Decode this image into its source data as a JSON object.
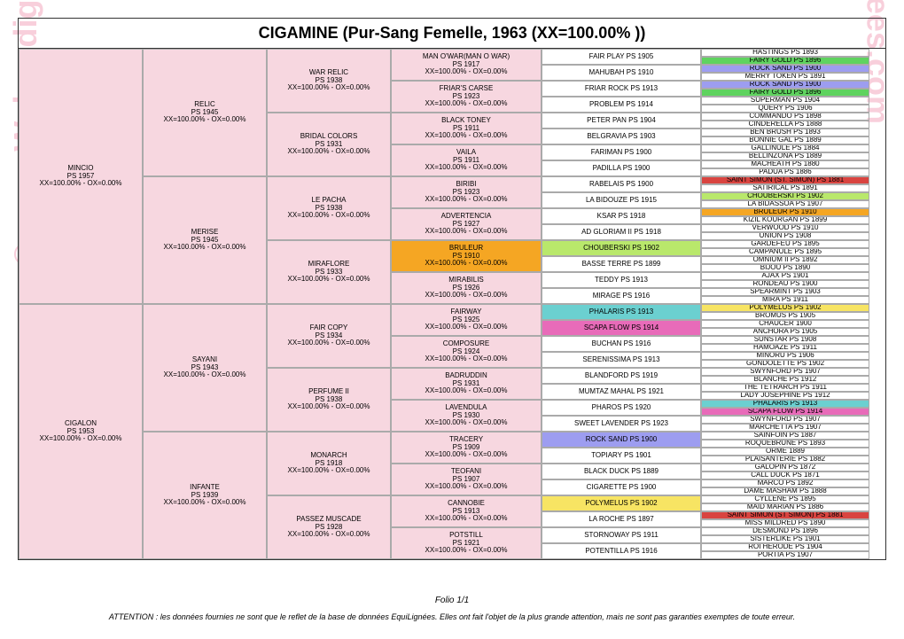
{
  "title": "CIGAMINE (Pur-Sang Femelle,  1963 (XX=100.00% ))",
  "folio": "Folio 1/1",
  "attention": "ATTENTION : les données fournies ne sont que le reflet de la base de données EquiLignées. Elles ont fait l'objet de la plus grande attention, mais ne sont pas garanties exemptes de toute erreur.",
  "watermark": "© www.Webpedigrees.com",
  "xx_line": "XX=100.00% - OX=0.00%",
  "colors": {
    "pink": "#f7d7e0",
    "green": "#5fd35f",
    "orange": "#f5a623",
    "yellow": "#f7e463",
    "red": "#d94440",
    "lime": "#b9e86b",
    "teal": "#6bd0d0",
    "purple": "#9d9df0",
    "magenta": "#e86bb9"
  },
  "gen1": [
    {
      "name": "MINCIO",
      "sub": "PS 1957",
      "bg": "pink"
    },
    {
      "name": "CIGALON",
      "sub": "PS 1953",
      "bg": "pink"
    }
  ],
  "gen2": [
    {
      "name": "RELIC",
      "sub": "PS 1945",
      "bg": "pink"
    },
    {
      "name": "MERISE",
      "sub": "PS 1945",
      "bg": "pink"
    },
    {
      "name": "SAYANI",
      "sub": "PS 1943",
      "bg": "pink"
    },
    {
      "name": "INFANTE",
      "sub": "PS 1939",
      "bg": "pink"
    }
  ],
  "gen3": [
    {
      "name": "WAR RELIC",
      "sub": "PS 1938",
      "bg": "pink"
    },
    {
      "name": "BRIDAL COLORS",
      "sub": "PS 1931",
      "bg": "pink"
    },
    {
      "name": "LE PACHA",
      "sub": "PS 1938",
      "bg": "pink"
    },
    {
      "name": "MIRAFLORE",
      "sub": "PS 1933",
      "bg": "pink"
    },
    {
      "name": "FAIR COPY",
      "sub": "PS 1934",
      "bg": "pink"
    },
    {
      "name": "PERFUME II",
      "sub": "PS 1938",
      "bg": "pink"
    },
    {
      "name": "MONARCH",
      "sub": "PS 1918",
      "bg": "pink"
    },
    {
      "name": "PASSEZ MUSCADE",
      "sub": "PS 1928",
      "bg": "pink"
    }
  ],
  "gen4": [
    {
      "name": "MAN O'WAR(MAN O WAR)",
      "sub": "PS 1917",
      "bg": "pink"
    },
    {
      "name": "FRIAR'S CARSE",
      "sub": "PS 1923",
      "bg": "pink"
    },
    {
      "name": "BLACK TONEY",
      "sub": "PS 1911",
      "bg": "pink"
    },
    {
      "name": "VAILA",
      "sub": "PS 1911",
      "bg": "pink"
    },
    {
      "name": "BIRIBI",
      "sub": "PS 1923",
      "bg": "pink"
    },
    {
      "name": "ADVERTENCIA",
      "sub": "PS 1927",
      "bg": "pink"
    },
    {
      "name": "BRULEUR",
      "sub": "PS 1910",
      "bg": "orange"
    },
    {
      "name": "MIRABILIS",
      "sub": "PS 1926",
      "bg": "pink"
    },
    {
      "name": "FAIRWAY",
      "sub": "PS 1925",
      "bg": "pink"
    },
    {
      "name": "COMPOSURE",
      "sub": "PS 1924",
      "bg": "pink"
    },
    {
      "name": "BADRUDDIN",
      "sub": "PS 1931",
      "bg": "pink"
    },
    {
      "name": "LAVENDULA",
      "sub": "PS 1930",
      "bg": "pink"
    },
    {
      "name": "TRACERY",
      "sub": "PS 1909",
      "bg": "pink"
    },
    {
      "name": "TEOFANI",
      "sub": "PS 1907",
      "bg": "pink"
    },
    {
      "name": "CANNOBIE",
      "sub": "PS 1913",
      "bg": "pink"
    },
    {
      "name": "POTSTILL",
      "sub": "PS 1921",
      "bg": "pink"
    }
  ],
  "gen5": [
    {
      "name": "FAIR PLAY PS 1905",
      "bg": ""
    },
    {
      "name": "MAHUBAH PS 1910",
      "bg": ""
    },
    {
      "name": "FRIAR ROCK PS 1913",
      "bg": ""
    },
    {
      "name": "PROBLEM PS 1914",
      "bg": ""
    },
    {
      "name": "PETER PAN PS 1904",
      "bg": ""
    },
    {
      "name": "BELGRAVIA PS 1903",
      "bg": ""
    },
    {
      "name": "FARIMAN PS 1900",
      "bg": ""
    },
    {
      "name": "PADILLA PS 1900",
      "bg": ""
    },
    {
      "name": "RABELAIS PS 1900",
      "bg": ""
    },
    {
      "name": "LA BIDOUZE PS 1915",
      "bg": ""
    },
    {
      "name": "KSAR PS 1918",
      "bg": ""
    },
    {
      "name": "AD GLORIAM II PS 1918",
      "bg": ""
    },
    {
      "name": "CHOUBERSKI PS 1902",
      "bg": "lime"
    },
    {
      "name": "BASSE TERRE PS 1899",
      "bg": ""
    },
    {
      "name": "TEDDY PS 1913",
      "bg": ""
    },
    {
      "name": "MIRAGE PS 1916",
      "bg": ""
    },
    {
      "name": "PHALARIS PS 1913",
      "bg": "teal"
    },
    {
      "name": "SCAPA FLOW PS 1914",
      "bg": "magenta"
    },
    {
      "name": "BUCHAN PS 1916",
      "bg": ""
    },
    {
      "name": "SERENISSIMA PS 1913",
      "bg": ""
    },
    {
      "name": "BLANDFORD PS 1919",
      "bg": ""
    },
    {
      "name": "MUMTAZ MAHAL PS 1921",
      "bg": ""
    },
    {
      "name": "PHAROS PS 1920",
      "bg": ""
    },
    {
      "name": "SWEET LAVENDER PS 1923",
      "bg": ""
    },
    {
      "name": "ROCK SAND PS 1900",
      "bg": "purple"
    },
    {
      "name": "TOPIARY PS 1901",
      "bg": ""
    },
    {
      "name": "BLACK DUCK PS 1889",
      "bg": ""
    },
    {
      "name": "CIGARETTE PS 1900",
      "bg": ""
    },
    {
      "name": "POLYMELUS PS 1902",
      "bg": "yellow"
    },
    {
      "name": "LA ROCHE PS 1897",
      "bg": ""
    },
    {
      "name": "STORNOWAY PS 1911",
      "bg": ""
    },
    {
      "name": "POTENTILLA PS 1916",
      "bg": ""
    }
  ],
  "gen6": [
    {
      "name": "HASTINGS PS 1893",
      "bg": ""
    },
    {
      "name": "FAIRY GOLD PS 1896",
      "bg": "green"
    },
    {
      "name": "ROCK SAND PS 1900",
      "bg": "purple"
    },
    {
      "name": "MERRY TOKEN PS 1891",
      "bg": ""
    },
    {
      "name": "ROCK SAND PS 1900",
      "bg": "purple"
    },
    {
      "name": "FAIRY GOLD PS 1896",
      "bg": "green"
    },
    {
      "name": "SUPERMAN PS 1904",
      "bg": ""
    },
    {
      "name": "QUERY PS 1906",
      "bg": ""
    },
    {
      "name": "COMMANDO PS 1898",
      "bg": ""
    },
    {
      "name": "CINDERELLA PS 1888",
      "bg": ""
    },
    {
      "name": "BEN BRUSH PS 1893",
      "bg": ""
    },
    {
      "name": "BONNIE GAL PS 1889",
      "bg": ""
    },
    {
      "name": "GALLINULE PS 1884",
      "bg": ""
    },
    {
      "name": "BELLINZONA PS 1889",
      "bg": ""
    },
    {
      "name": "MACHEATH PS 1880",
      "bg": ""
    },
    {
      "name": "PADUA PS 1886",
      "bg": ""
    },
    {
      "name": "SAINT SIMON (ST. SIMON) PS 1881",
      "bg": "red"
    },
    {
      "name": "SATIRICAL PS 1891",
      "bg": ""
    },
    {
      "name": "CHOUBERSKI PS 1902",
      "bg": "lime"
    },
    {
      "name": "LA BIDASSOA PS 1907",
      "bg": ""
    },
    {
      "name": "BRULEUR PS 1910",
      "bg": "orange"
    },
    {
      "name": "KIZIL KOURGAN PS 1899",
      "bg": ""
    },
    {
      "name": "VERWOOD PS 1910",
      "bg": ""
    },
    {
      "name": "UNION PS 1908",
      "bg": ""
    },
    {
      "name": "GARDEFEU PS 1895",
      "bg": ""
    },
    {
      "name": "CAMPANULE PS 1895",
      "bg": ""
    },
    {
      "name": "OMNIUM II PS 1892",
      "bg": ""
    },
    {
      "name": "BIJOU PS 1890",
      "bg": ""
    },
    {
      "name": "AJAX PS 1901",
      "bg": ""
    },
    {
      "name": "RONDEAU PS 1900",
      "bg": ""
    },
    {
      "name": "SPEARMINT PS 1903",
      "bg": ""
    },
    {
      "name": "MIRA PS 1911",
      "bg": ""
    },
    {
      "name": "POLYMELUS PS 1902",
      "bg": "yellow"
    },
    {
      "name": "BROMUS PS 1905",
      "bg": ""
    },
    {
      "name": "CHAUCER 1900",
      "bg": ""
    },
    {
      "name": "ANCHORA PS 1905",
      "bg": ""
    },
    {
      "name": "SUNSTAR PS 1908",
      "bg": ""
    },
    {
      "name": "HAMOAZE PS 1911",
      "bg": ""
    },
    {
      "name": "MINORU PS 1906",
      "bg": ""
    },
    {
      "name": "GONDOLETTE PS 1902",
      "bg": ""
    },
    {
      "name": "SWYNFORD PS 1907",
      "bg": ""
    },
    {
      "name": "BLANCHE PS 1912",
      "bg": ""
    },
    {
      "name": "THE TETRARCH PS 1911",
      "bg": ""
    },
    {
      "name": "LADY JOSEPHINE PS 1912",
      "bg": ""
    },
    {
      "name": "PHALARIS PS 1913",
      "bg": "teal"
    },
    {
      "name": "SCAPA FLOW PS 1914",
      "bg": "magenta"
    },
    {
      "name": "SWYNFORD PS 1907",
      "bg": ""
    },
    {
      "name": "MARCHETTA PS 1907",
      "bg": ""
    },
    {
      "name": "SAINFOIN PS 1887",
      "bg": ""
    },
    {
      "name": "ROQUEBRUNE PS 1893",
      "bg": ""
    },
    {
      "name": "ORME 1889",
      "bg": ""
    },
    {
      "name": "PLAISANTERIE PS 1882",
      "bg": ""
    },
    {
      "name": "GALOPIN PS 1872",
      "bg": ""
    },
    {
      "name": "CALL DUCK PS 1871",
      "bg": ""
    },
    {
      "name": "MARCO PS 1892",
      "bg": ""
    },
    {
      "name": "DAME MASHAM PS 1888",
      "bg": ""
    },
    {
      "name": "CYLLENE PS 1895",
      "bg": ""
    },
    {
      "name": "MAID MARIAN PS 1886",
      "bg": ""
    },
    {
      "name": "SAINT SIMON (ST SIMON) PS 1881",
      "bg": "red"
    },
    {
      "name": "MISS MILDRED PS 1890",
      "bg": ""
    },
    {
      "name": "DESMOND PS 1896",
      "bg": ""
    },
    {
      "name": "SISTERLIKE PS 1901",
      "bg": ""
    },
    {
      "name": "ROI HERODE PS 1904",
      "bg": ""
    },
    {
      "name": "PORTIA PS 1907",
      "bg": ""
    }
  ]
}
